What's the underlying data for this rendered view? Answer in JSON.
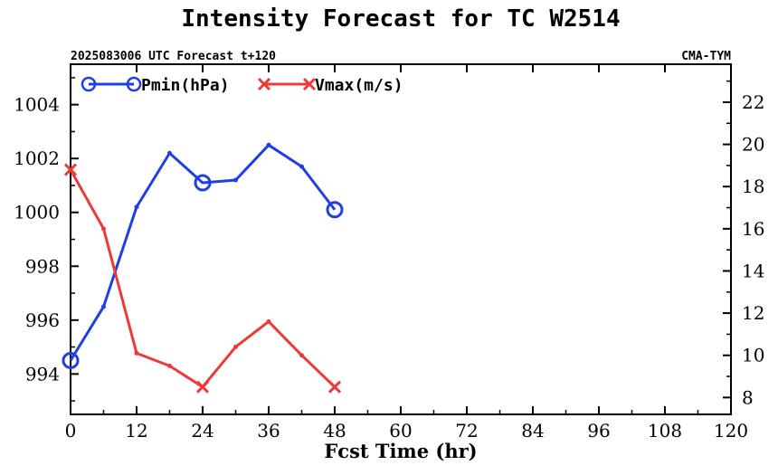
{
  "colors": {
    "pmin": "#1f3fe6",
    "vmax": "#ee3a36",
    "axis": "#000000",
    "background": "#ffffff"
  },
  "chart_data": {
    "type": "line",
    "title": "Intensity Forecast for TC W2514",
    "subtitle_left": "2025083006 UTC Forecast t+120",
    "subtitle_right": "CMA-TYM",
    "xlabel": "Fcst Time (hr)",
    "xlim": [
      0,
      120
    ],
    "x_ticks": [
      0,
      12,
      24,
      36,
      48,
      60,
      72,
      84,
      96,
      108,
      120
    ],
    "y_left_lim": [
      992.5,
      1005.5
    ],
    "y_left_ticks": [
      994,
      996,
      998,
      1000,
      1002,
      1004
    ],
    "y_right_lim": [
      7.2,
      23.8
    ],
    "y_right_ticks": [
      8,
      10,
      12,
      14,
      16,
      18,
      20,
      22
    ],
    "legend_placement": "top-left",
    "series": [
      {
        "name": "Pmin(hPa)",
        "axis": "left",
        "marker": "circle",
        "x": [
          0,
          6,
          12,
          18,
          24,
          30,
          36,
          42,
          48
        ],
        "values": [
          994.5,
          996.5,
          1000.2,
          1002.2,
          1001.1,
          1001.2,
          1002.5,
          1001.7,
          1000.1
        ],
        "major_marker_x": [
          0,
          24,
          48
        ]
      },
      {
        "name": "Vmax(m/s)",
        "axis": "right",
        "marker": "x",
        "x": [
          0,
          6,
          12,
          18,
          24,
          30,
          36,
          42,
          48
        ],
        "values": [
          18.8,
          16.0,
          10.1,
          9.5,
          8.5,
          10.4,
          11.6,
          10.0,
          8.5
        ],
        "major_marker_x": [
          0,
          24,
          48
        ]
      }
    ]
  }
}
